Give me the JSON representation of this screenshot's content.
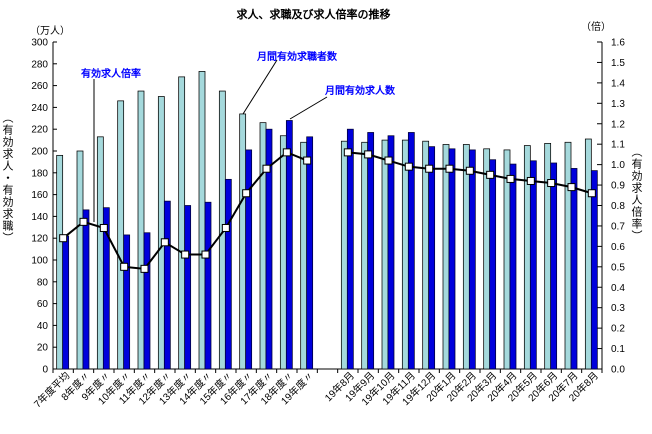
{
  "title": "求人、求職及び求人倍率の推移",
  "left_axis": {
    "unit": "（万人）",
    "title": "（有効求人・有効求職）",
    "min": 0,
    "max": 300,
    "step": 20
  },
  "right_axis": {
    "unit": "（倍）",
    "title": "（有効求人倍率）",
    "min": 0,
    "max": 1.6,
    "step": 0.1
  },
  "annotations": {
    "ratio_label": "有効求人倍率",
    "seekers_label": "月間有効求職者数",
    "openings_label": "月間有効求人数"
  },
  "colors": {
    "seekers_bar": "#A5D9DC",
    "openings_bar": "#0000DC",
    "ratio_line": "#000000",
    "marker_fill": "#FFFFFF",
    "annotation_text": "#0000FF"
  },
  "chart_data": {
    "type": "bar",
    "title": "求人、求職及び求人倍率の推移",
    "xlabel": "",
    "ylabel": "有効求人・有効求職（万人）",
    "y2label": "有効求人倍率（倍）",
    "ylim": [
      0,
      300
    ],
    "y2lim": [
      0,
      1.6
    ],
    "grid": false,
    "legend_position": "none",
    "categories": [
      "7年度平均",
      "8年度〃",
      "9年度〃",
      "10年度〃",
      "11年度〃",
      "12年度〃",
      "13年度〃",
      "14年度〃",
      "15年度〃",
      "16年度〃",
      "17年度〃",
      "18年度〃",
      "19年度〃",
      "",
      "19年8月",
      "19年9月",
      "19年10月",
      "19年11月",
      "19年12月",
      "20年1月",
      "20年2月",
      "20年3月",
      "20年4月",
      "20年5月",
      "20年6月",
      "20年7月",
      "20年8月"
    ],
    "series": [
      {
        "name": "月間有効求職者数",
        "type": "bar",
        "axis": "left",
        "values": [
          196,
          200,
          213,
          246,
          255,
          250,
          268,
          273,
          255,
          234,
          226,
          214,
          208,
          null,
          209,
          208,
          210,
          210,
          209,
          206,
          206,
          202,
          201,
          205,
          207,
          208,
          211
        ]
      },
      {
        "name": "月間有効求人数",
        "type": "bar",
        "axis": "left",
        "values": [
          122,
          146,
          148,
          123,
          125,
          154,
          150,
          153,
          174,
          201,
          220,
          228,
          213,
          null,
          220,
          217,
          214,
          217,
          204,
          202,
          201,
          192,
          188,
          191,
          189,
          184,
          182
        ]
      },
      {
        "name": "有効求人倍率",
        "type": "line",
        "axis": "right",
        "values": [
          0.64,
          0.72,
          0.69,
          0.5,
          0.49,
          0.62,
          0.56,
          0.56,
          0.69,
          0.86,
          0.98,
          1.06,
          1.02,
          null,
          1.06,
          1.05,
          1.02,
          0.99,
          0.98,
          0.98,
          0.97,
          0.95,
          0.93,
          0.92,
          0.91,
          0.89,
          0.86
        ]
      }
    ]
  }
}
